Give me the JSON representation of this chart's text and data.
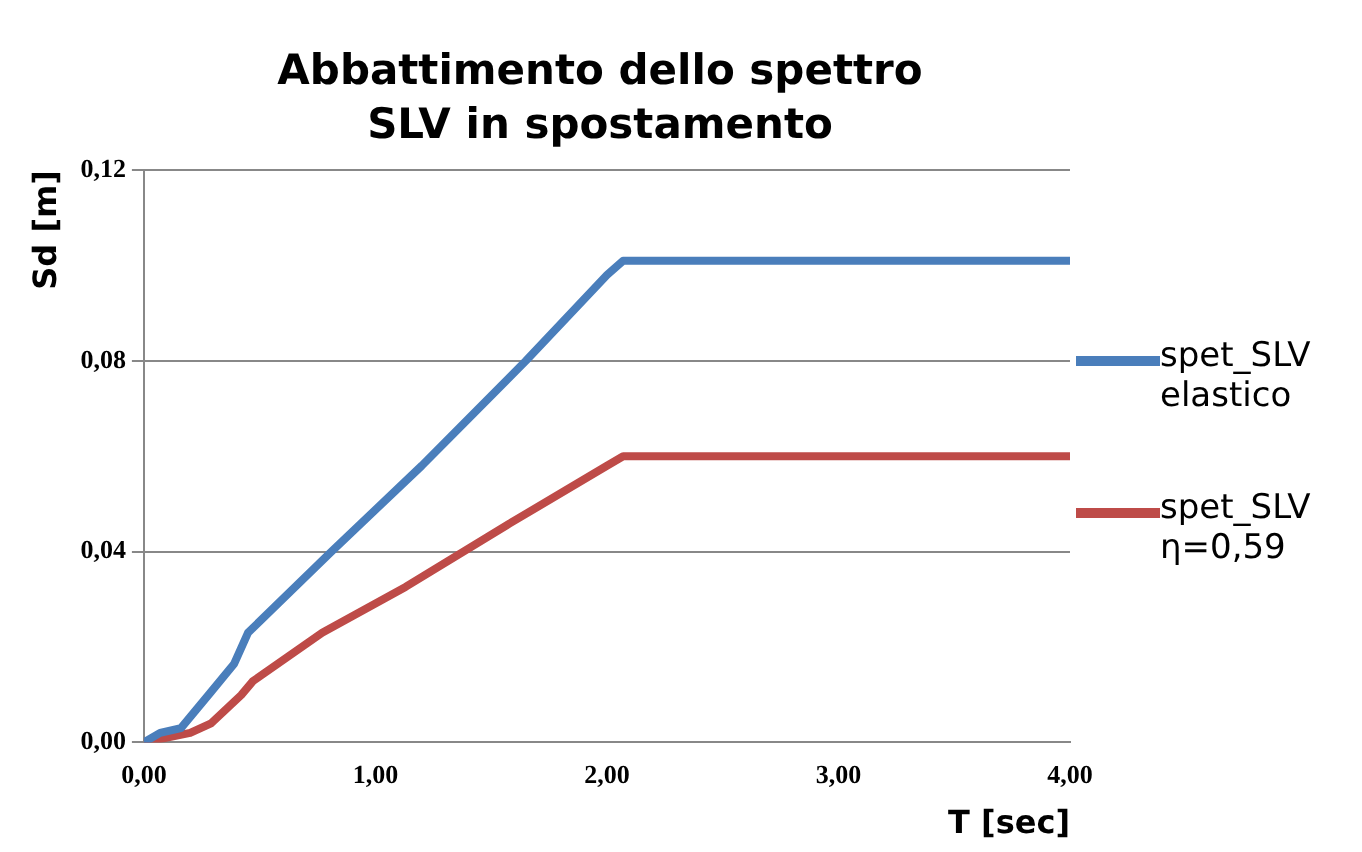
{
  "chart_data": {
    "type": "line",
    "title": "Abbattimento dello spettro SLV in spostamento",
    "xlabel": "T [sec]",
    "ylabel": "Sd [m]",
    "xlim": [
      0,
      4
    ],
    "xticks": [
      {
        "value": 0,
        "label": "0,00"
      },
      {
        "value": 1,
        "label": "1,00"
      },
      {
        "value": 2,
        "label": "2,00"
      },
      {
        "value": 3,
        "label": "3,00"
      },
      {
        "value": 4,
        "label": "4,00"
      }
    ],
    "ylim": [
      0,
      0.12
    ],
    "yticks": [
      {
        "value": 0,
        "label": "0,00"
      },
      {
        "value": 0.04,
        "label": "0,04"
      },
      {
        "value": 0.08,
        "label": "0,08"
      },
      {
        "value": 0.12,
        "label": "0,12"
      }
    ],
    "grid": "y",
    "legend": "right",
    "marker": "none",
    "line_style": "solid",
    "series": [
      {
        "name": "spet_SLV elastico",
        "color": "#4a7ebb",
        "x": [
          0,
          0.07,
          0.16,
          0.29,
          0.39,
          0.45,
          0.81,
          1.2,
          1.65,
          2.0,
          2.07,
          4
        ],
        "values": [
          0,
          0.002,
          0.003,
          0.0106,
          0.0165,
          0.023,
          0.04,
          0.058,
          0.08,
          0.098,
          0.101,
          0.101
        ]
      },
      {
        "name": "spet_SLV η=0,59",
        "color": "#be4b48",
        "x": [
          0,
          0.1,
          0.2,
          0.29,
          0.42,
          0.47,
          0.77,
          1.13,
          1.58,
          2.0,
          2.07,
          4
        ],
        "values": [
          0,
          0.001,
          0.002,
          0.004,
          0.0099,
          0.0128,
          0.023,
          0.0326,
          0.0459,
          0.058,
          0.06,
          0.06
        ]
      }
    ]
  }
}
